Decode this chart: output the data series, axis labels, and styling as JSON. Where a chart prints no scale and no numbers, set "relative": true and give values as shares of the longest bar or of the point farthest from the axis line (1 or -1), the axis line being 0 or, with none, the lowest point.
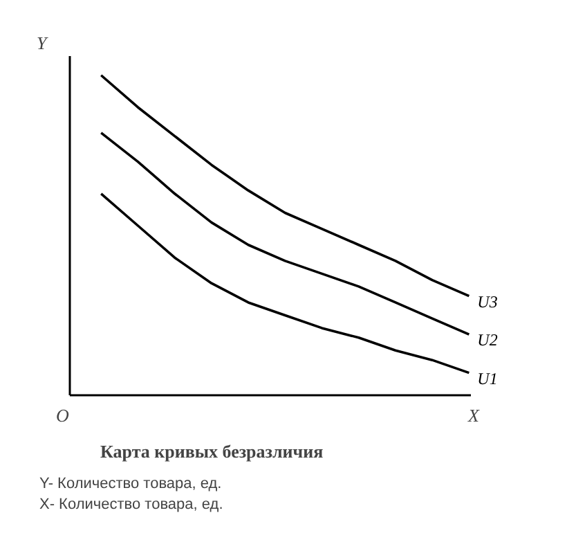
{
  "chart_data": {
    "type": "line",
    "title": "Карта кривых безразличия",
    "xlabel": "X",
    "ylabel": "Y",
    "relative": true,
    "marker": "none",
    "line_style": "solid",
    "annotations": [
      "O",
      "Y- Количество товара, ед.",
      "X- Количество товара, ед."
    ],
    "categories": [
      null,
      null,
      null,
      null,
      null,
      null,
      null,
      null,
      null,
      null,
      null
    ],
    "series": [
      {
        "name": "U3",
        "color": "#000000",
        "values": [
          1.0,
          0.9,
          0.81,
          0.72,
          0.64,
          0.57,
          0.52,
          0.47,
          0.42,
          0.36,
          0.31
        ]
      },
      {
        "name": "U2",
        "color": "#000000",
        "values": [
          0.82,
          0.73,
          0.63,
          0.54,
          0.47,
          0.42,
          0.38,
          0.34,
          0.29,
          0.24,
          0.19
        ]
      },
      {
        "name": "U1",
        "color": "#000000",
        "values": [
          0.63,
          0.53,
          0.43,
          0.35,
          0.29,
          0.25,
          0.21,
          0.18,
          0.14,
          0.11,
          0.07
        ]
      }
    ]
  }
}
